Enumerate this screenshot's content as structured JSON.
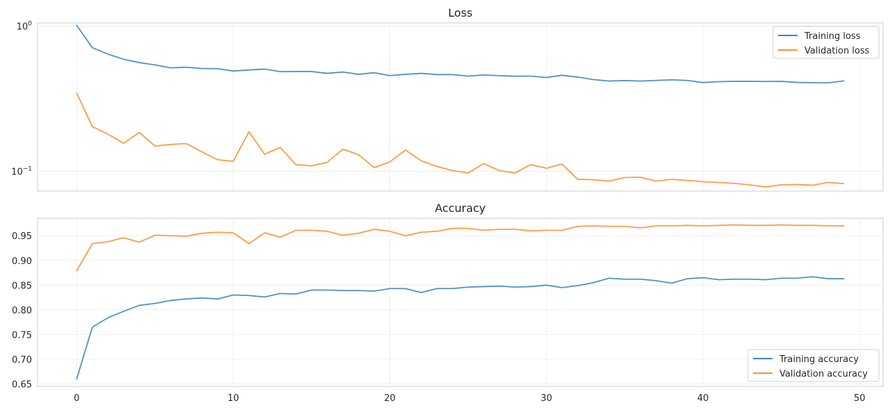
{
  "colors": {
    "training": "#3a87c0",
    "validation": "#ff9030"
  },
  "chart_data": [
    {
      "type": "line",
      "title": "Loss",
      "xlabel": "",
      "ylabel": "",
      "yscale": "log",
      "ylim": [
        0.073,
        1.05
      ],
      "xlim": [
        -2.5,
        51.5
      ],
      "grid": true,
      "legend": "top-right",
      "x": [
        0,
        1,
        2,
        3,
        4,
        5,
        6,
        7,
        8,
        9,
        10,
        11,
        12,
        13,
        14,
        15,
        16,
        17,
        18,
        19,
        20,
        21,
        22,
        23,
        24,
        25,
        26,
        27,
        28,
        29,
        30,
        31,
        32,
        33,
        34,
        35,
        36,
        37,
        38,
        39,
        40,
        41,
        42,
        43,
        44,
        45,
        46,
        47,
        48,
        49
      ],
      "y_ticks": [
        {
          "value": 1,
          "base": "10",
          "exp": "0"
        },
        {
          "value": 0.1,
          "base": "10",
          "exp": "−1"
        }
      ],
      "series": [
        {
          "name": "Training loss",
          "color_key": "training",
          "values": [
            1.01,
            0.71,
            0.64,
            0.59,
            0.56,
            0.54,
            0.515,
            0.52,
            0.51,
            0.508,
            0.49,
            0.498,
            0.505,
            0.485,
            0.486,
            0.486,
            0.472,
            0.482,
            0.465,
            0.477,
            0.456,
            0.465,
            0.472,
            0.463,
            0.463,
            0.452,
            0.46,
            0.455,
            0.451,
            0.452,
            0.442,
            0.458,
            0.445,
            0.428,
            0.418,
            0.421,
            0.418,
            0.422,
            0.426,
            0.422,
            0.408,
            0.414,
            0.416,
            0.416,
            0.415,
            0.416,
            0.409,
            0.407,
            0.406,
            0.419
          ]
        },
        {
          "name": "Validation loss",
          "color_key": "validation",
          "values": [
            0.345,
            0.203,
            0.18,
            0.156,
            0.185,
            0.149,
            0.153,
            0.155,
            0.136,
            0.12,
            0.117,
            0.187,
            0.131,
            0.146,
            0.111,
            0.109,
            0.115,
            0.142,
            0.13,
            0.106,
            0.116,
            0.14,
            0.118,
            0.108,
            0.101,
            0.0975,
            0.113,
            0.101,
            0.0975,
            0.111,
            0.105,
            0.112,
            0.088,
            0.0875,
            0.0855,
            0.0905,
            0.091,
            0.0855,
            0.088,
            0.0865,
            0.0847,
            0.0838,
            0.0825,
            0.0806,
            0.078,
            0.0807,
            0.0809,
            0.0801,
            0.0838,
            0.0822
          ]
        }
      ]
    },
    {
      "type": "line",
      "title": "Accuracy",
      "xlabel": "",
      "ylabel": "",
      "ylim": [
        0.645,
        0.9855
      ],
      "xlim": [
        -2.5,
        51.5
      ],
      "grid": true,
      "legend": "bottom-right",
      "x": [
        0,
        1,
        2,
        3,
        4,
        5,
        6,
        7,
        8,
        9,
        10,
        11,
        12,
        13,
        14,
        15,
        16,
        17,
        18,
        19,
        20,
        21,
        22,
        23,
        24,
        25,
        26,
        27,
        28,
        29,
        30,
        31,
        32,
        33,
        34,
        35,
        36,
        37,
        38,
        39,
        40,
        41,
        42,
        43,
        44,
        45,
        46,
        47,
        48,
        49
      ],
      "x_ticks": [
        "0",
        "10",
        "20",
        "30",
        "40",
        "50"
      ],
      "y_ticks": [
        "0.65",
        "0.70",
        "0.75",
        "0.80",
        "0.85",
        "0.90",
        "0.95"
      ],
      "series": [
        {
          "name": "Training accuracy",
          "color_key": "training",
          "values": [
            0.66,
            0.765,
            0.784,
            0.797,
            0.809,
            0.813,
            0.819,
            0.822,
            0.824,
            0.822,
            0.83,
            0.829,
            0.826,
            0.833,
            0.832,
            0.84,
            0.84,
            0.839,
            0.839,
            0.838,
            0.843,
            0.843,
            0.835,
            0.843,
            0.843,
            0.846,
            0.847,
            0.848,
            0.846,
            0.847,
            0.85,
            0.845,
            0.849,
            0.855,
            0.864,
            0.862,
            0.862,
            0.859,
            0.854,
            0.863,
            0.865,
            0.861,
            0.862,
            0.862,
            0.861,
            0.864,
            0.864,
            0.867,
            0.863,
            0.863
          ]
        },
        {
          "name": "Validation accuracy",
          "color_key": "validation",
          "values": [
            0.879,
            0.934,
            0.938,
            0.946,
            0.937,
            0.951,
            0.95,
            0.949,
            0.955,
            0.957,
            0.956,
            0.934,
            0.956,
            0.947,
            0.961,
            0.961,
            0.959,
            0.951,
            0.955,
            0.963,
            0.959,
            0.95,
            0.957,
            0.959,
            0.965,
            0.965,
            0.961,
            0.963,
            0.963,
            0.96,
            0.961,
            0.961,
            0.969,
            0.97,
            0.969,
            0.969,
            0.966,
            0.97,
            0.97,
            0.971,
            0.97,
            0.971,
            0.972,
            0.971,
            0.971,
            0.972,
            0.971,
            0.971,
            0.97,
            0.97
          ]
        }
      ]
    }
  ]
}
